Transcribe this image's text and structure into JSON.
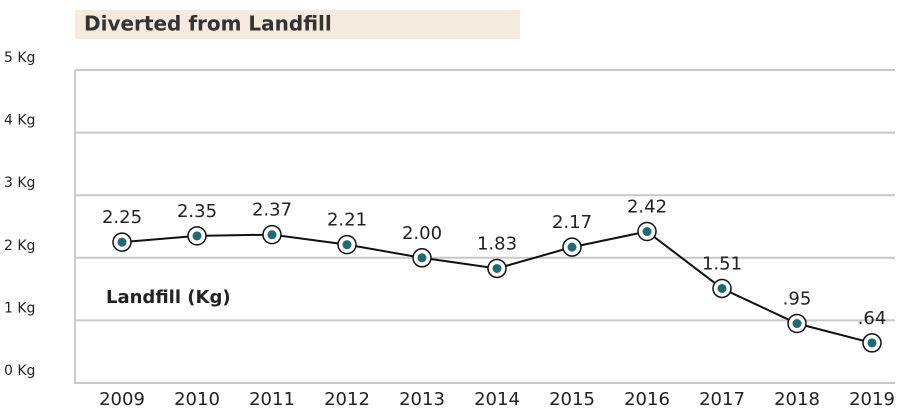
{
  "chart_data": {
    "type": "line",
    "title": "Diverted from Landfill",
    "categories": [
      "2009",
      "2010",
      "2011",
      "2012",
      "2013",
      "2014",
      "2015",
      "2016",
      "2017",
      "2018",
      "2019"
    ],
    "series": [
      {
        "name": "Landfill (Kg)",
        "color": "#1f6b75",
        "values": [
          2.25,
          2.35,
          2.37,
          2.21,
          2.0,
          1.83,
          2.17,
          2.42,
          1.51,
          0.95,
          0.64
        ],
        "value_labels": [
          "2.25",
          "2.35",
          "2.37",
          "2.21",
          "2.00",
          "1.83",
          "2.17",
          "2.42",
          "1.51",
          ".95",
          ".64"
        ]
      }
    ],
    "ylim": [
      0,
      5
    ],
    "yticks": [
      {
        "value": 0,
        "label": "0 Kg"
      },
      {
        "value": 1,
        "label": "1 Kg"
      },
      {
        "value": 2,
        "label": "2 Kg"
      },
      {
        "value": 3,
        "label": "3 Kg"
      },
      {
        "value": 4,
        "label": "4 Kg"
      },
      {
        "value": 5,
        "label": "5 Kg"
      }
    ],
    "grid": true
  }
}
